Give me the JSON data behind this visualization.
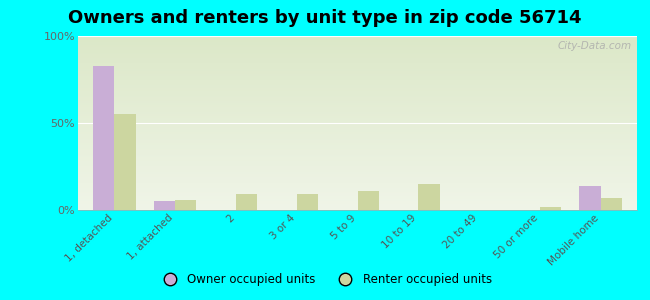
{
  "title": "Owners and renters by unit type in zip code 56714",
  "categories": [
    "1, detached",
    "1, attached",
    "2",
    "3 or 4",
    "5 to 9",
    "10 to 19",
    "20 to 49",
    "50 or more",
    "Mobile home"
  ],
  "owner_values": [
    83,
    5,
    0,
    0,
    0,
    0,
    0,
    0,
    14
  ],
  "renter_values": [
    55,
    6,
    9,
    9,
    11,
    15,
    0,
    2,
    7
  ],
  "owner_color": "#c9aed6",
  "renter_color": "#ccd6a0",
  "background_color": "#00ffff",
  "plot_bg_top": "#dce8c8",
  "plot_bg_bottom": "#f0f5e8",
  "ylim": [
    0,
    100
  ],
  "yticks": [
    0,
    50,
    100
  ],
  "ytick_labels": [
    "0%",
    "50%",
    "100%"
  ],
  "watermark": "City-Data.com",
  "legend_owner": "Owner occupied units",
  "legend_renter": "Renter occupied units",
  "title_fontsize": 13,
  "bar_width": 0.35,
  "figsize": [
    6.5,
    3.0
  ],
  "dpi": 100
}
